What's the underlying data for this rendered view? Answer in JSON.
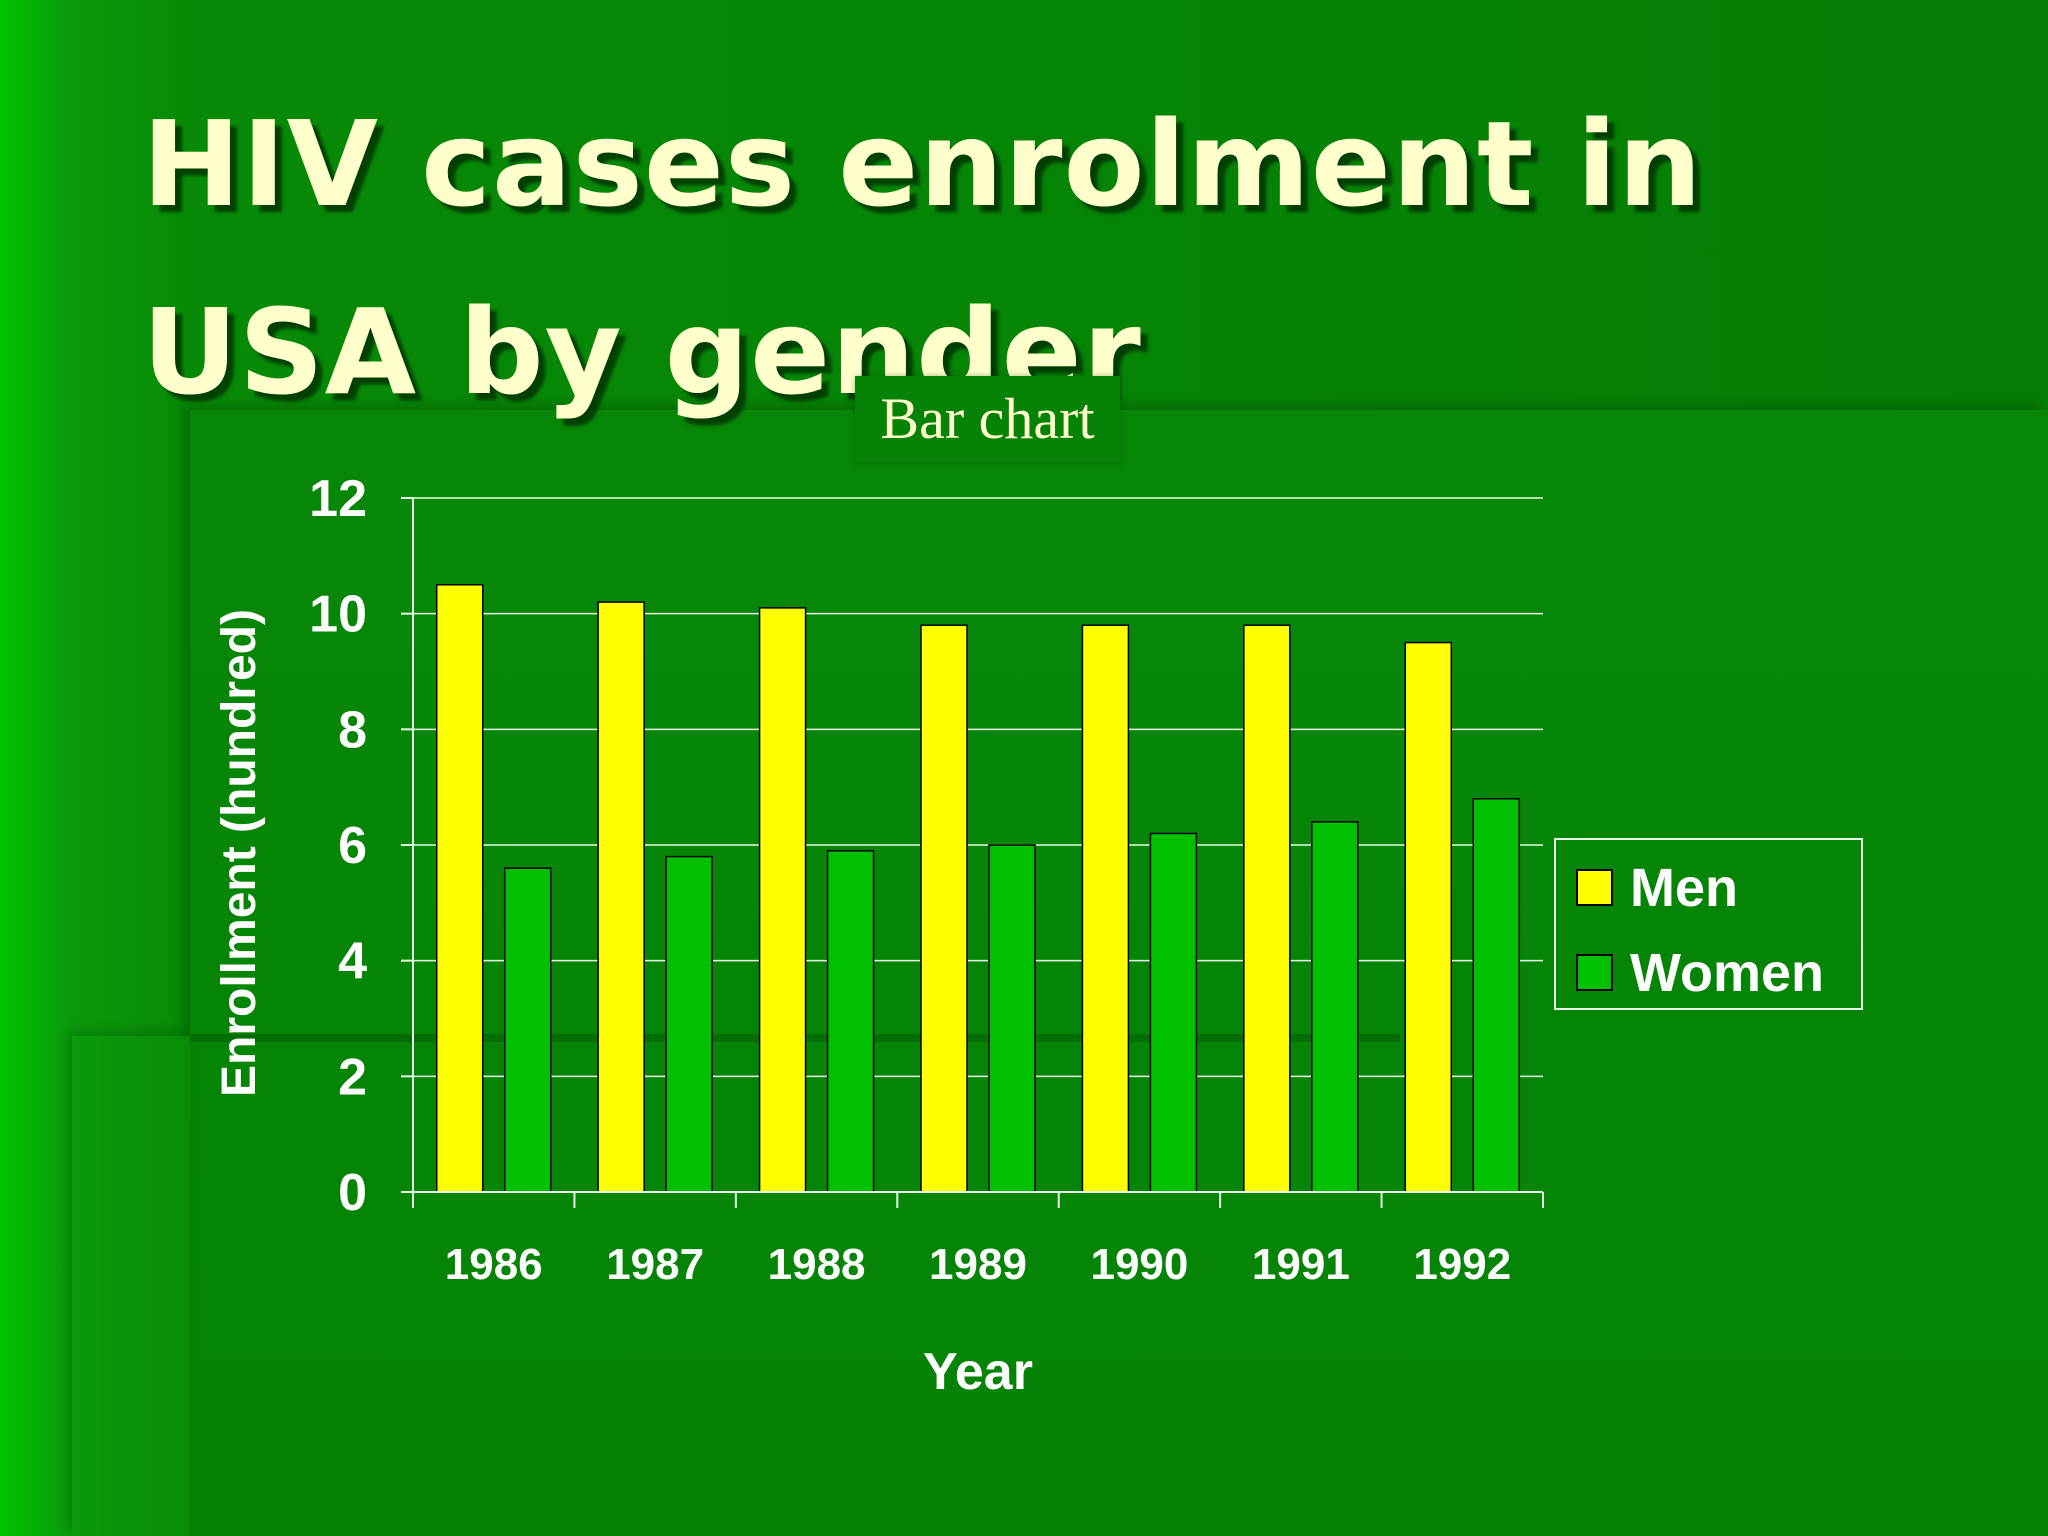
{
  "slide": {
    "title": "HIV cases enrolment in USA by gender",
    "caption": "Bar chart"
  },
  "colors": {
    "men": "#ffff00",
    "women": "#00c000",
    "title": "#ffffcc",
    "text": "#ffffff"
  },
  "chart_data": {
    "type": "bar",
    "categories": [
      "1986",
      "1987",
      "1988",
      "1989",
      "1990",
      "1991",
      "1992"
    ],
    "series": [
      {
        "name": "Men",
        "values": [
          10.5,
          10.2,
          10.1,
          9.8,
          9.8,
          9.8,
          9.5
        ]
      },
      {
        "name": "Women",
        "values": [
          5.6,
          5.8,
          5.9,
          6.0,
          6.2,
          6.4,
          6.8
        ]
      }
    ],
    "xlabel": "Year",
    "ylabel": "Enrollment (hundred)",
    "ylim": [
      0,
      12
    ],
    "yticks": [
      "0",
      "2",
      "4",
      "6",
      "8",
      "10",
      "12"
    ],
    "grid": true,
    "legend": "right"
  }
}
